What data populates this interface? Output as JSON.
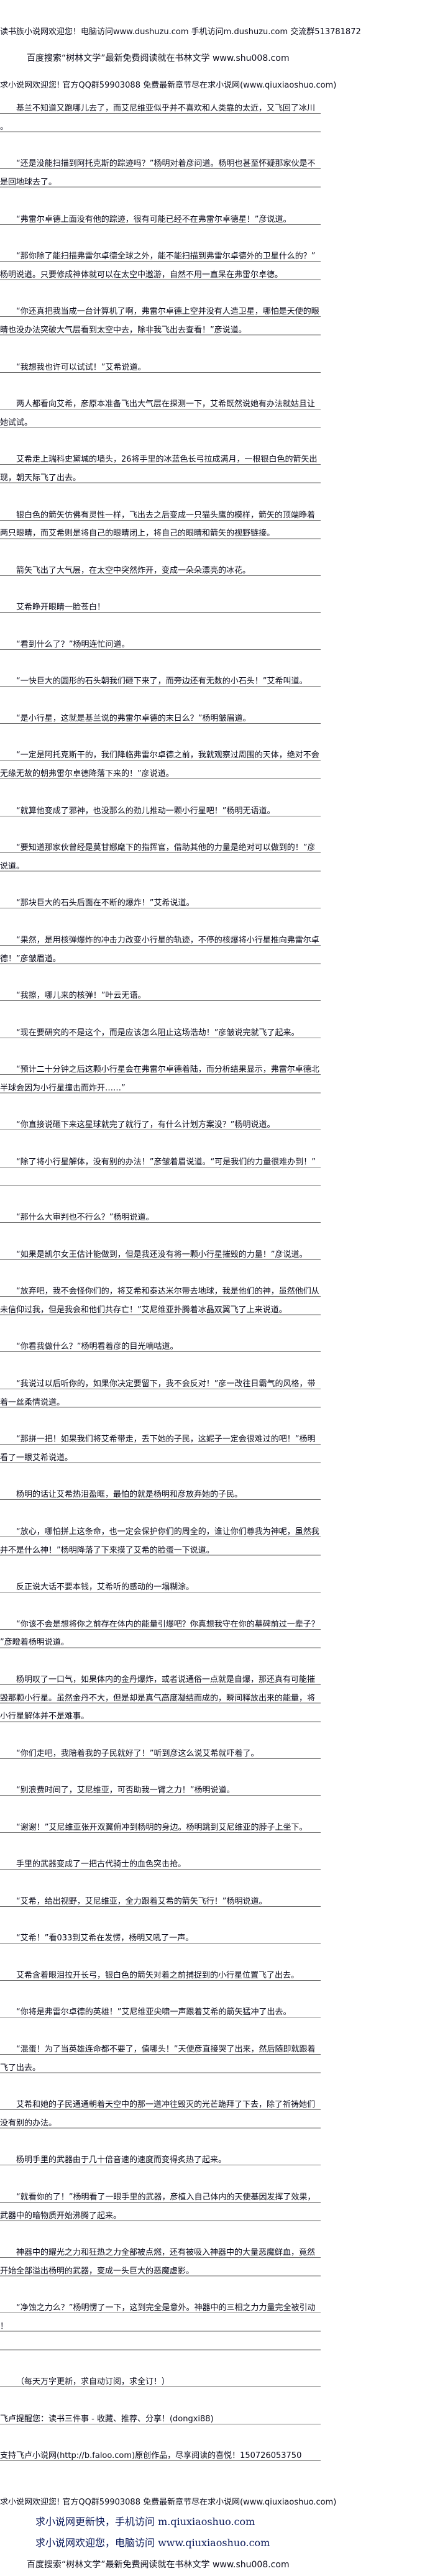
{
  "header": {
    "line1": "读书族小说网欢迎您！电脑访问www.dushuzu.com 手机访问m.dushuzu.com 交流群513781872",
    "line2": "百度搜索“树林文学”最新免费阅读就在书林文学 www.shu008.com",
    "line3": "求小说网欢迎您! 官方QQ群59903088 免费最新章节尽在求小说网(www.qiuxiaoshuo.com)"
  },
  "paragraphs": [
    {
      "text": "基兰不知道又跑哪儿去了，而艾尼维亚似乎并不喜欢和人类靠的太近，又飞回了冰川。"
    },
    {
      "text": "“还是没能扫描到阿托克斯的踪迹吗？”杨明对着彦问道。杨明也甚至怀疑那家伙是不是回地球去了。"
    },
    {
      "text": "“弗雷尔卓德上面没有他的踪迹，很有可能已经不在弗雷尔卓德星！”彦说道。"
    },
    {
      "text": "“那你除了能扫描弗雷尔卓德全球之外，能不能扫描到弗雷尔卓德外的卫星什么的？”杨明说道。只要修成神体就可以在太空中遨游，自然不用一直呆在弗雷尔卓德。"
    },
    {
      "text": "“你还真把我当成一台计算机了啊，弗雷尔卓德上空并没有人造卫星，哪怕是天使的眼睛也没办法突破大气层看到太空中去，除非我飞出去查看！”彦说道。"
    },
    {
      "text": "“我想我也许可以试试！”艾希说道。"
    },
    {
      "text": "两人都看向艾希，彦原本准备飞出大气层在探测一下，艾希既然说她有办法就姑且让她试试。"
    },
    {
      "text": "艾希走上瑞科史黛城的墙头，26将手里的冰蓝色长弓拉成满月，一根银白色的箭矢出现，朝天际飞了出去。"
    },
    {
      "text": "银白色的箭矢仿佛有灵性一样，飞出去之后变成一只猫头鹰的模样，箭矢的顶端睁着两只眼睛，而艾希则是将自己的眼睛闭上，将自己的眼睛和箭矢的视野链接。"
    },
    {
      "text": "箭矢飞出了大气层，在太空中突然炸开，变成一朵朵漂亮的冰花。"
    },
    {
      "text": "艾希睁开眼睛一脸苍白！"
    },
    {
      "text": "“看到什么了？”杨明连忙问道。"
    },
    {
      "text": "“一快巨大的圆形的石头朝我们砸下来了，而旁边还有无数的小石头！”艾希叫道。"
    },
    {
      "text": "“是小行星，这就是基兰说的弗雷尔卓德的末日么？”杨明皱眉道。"
    },
    {
      "text": "“一定是阿托克斯干的，我们降临弗雷尔卓德之前，我就观察过周围的天体，绝对不会无缘无故的朝弗雷尔卓德降落下来的！”彦说道。"
    },
    {
      "text": "“就算他变成了邪神，也没那么的劲儿推动一颗小行星吧！”杨明无语道。"
    },
    {
      "text": "“要知道那家伙曾经是莫甘娜麾下的指挥官，借助其他的力量是绝对可以做到的！”彦说道。"
    },
    {
      "text": "“那块巨大的石头后面在不断的爆炸！”艾希说道。"
    },
    {
      "text": "“果然，是用核弹爆炸的冲击力改变小行星的轨迹，不停的核爆将小行星推向弗雷尔卓德！”彦皱眉道。"
    },
    {
      "text": "“我擦，哪儿来的核弹！”叶云无语。"
    },
    {
      "text": "“现在要研究的不是这个，而是应该怎么阻止这场浩劫！”彦皱说完就飞了起来。"
    },
    {
      "text": "“预计二十分钟之后这颗小行星会在弗雷尔卓德着陆，而分析结果显示，弗雷尔卓德北半球会因为小行星撞击而炸开……”"
    },
    {
      "text": "“你直接说砸下来这星球就完了就行了，有什么计划方案没？”杨明说道。"
    },
    {
      "text": "“除了将小行星解体，没有别的办法！”彦皱着眉说道。“可是我们的力量很难办到！”",
      "blank_line_after": true
    },
    {
      "text": "“那什么大审判也不行么？”杨明说道。"
    },
    {
      "text": "“如果是凯尔女王估计能做到，但是我还没有将一颗小行星摧毁的力量！”彦说道。"
    },
    {
      "text": "“放弃吧，我不会怪你们的，将艾希和泰达米尔带去地球，我是他们的神，虽然他们从未信仰过我，但是我会和他们共存亡！”艾尼维亚扑腾着冰晶双翼飞了上来说道。"
    },
    {
      "text": "“你看我做什么？”杨明看着彦的目光嘀咕道。"
    },
    {
      "text": "“我说过以后听你的，如果你决定要留下，我不会反对！”彦一改往日霸气的风格，带着一丝柔情说道。"
    },
    {
      "text": "“那拼一把！如果我们将艾希带走，丢下她的子民，这妮子一定会很难过的吧！”杨明看了一眼艾希说道。"
    },
    {
      "text": "杨明的话让艾希热泪盈眶，最怕的就是杨明和彦放弃她的子民。"
    },
    {
      "text": "“放心，哪怕拼上这条命，也一定会保护你们的周全的，谁让你们尊我为神呢，虽然我并不是什么神！”杨明降落了下来摸了艾希的脸蛋一下说道。"
    },
    {
      "text": "反正说大话不要本钱，艾希听的感动的一塌糊涂。"
    },
    {
      "text": "“你该不会是想将你之前存在体内的能量引爆吧？你真想我守在你的墓碑前过一辈子？”彦瞪着杨明说道。"
    },
    {
      "text": "杨明叹了一口气，如果体内的金丹爆炸，或者说通俗一点就是自爆，那还真有可能摧毁那颗小行星。虽然金丹不大，但是却是真气高度凝结而成的，瞬间释放出来的能量，将小行星解体并不是难事。"
    },
    {
      "text": "“你们走吧，我陪着我的子民就好了！”听到彦这么说艾希就吓着了。"
    },
    {
      "text": "“别浪费时间了，艾尼维亚，可否助我一臂之力！”杨明说道。"
    },
    {
      "text": "“谢谢！”艾尼维亚张开双翼俯冲到杨明的身边。杨明跳到艾尼维亚的脖子上坐下。"
    },
    {
      "text": "手里的武器变成了一把古代骑士的血色突击抢。"
    },
    {
      "text": "“艾希，给出视野，艾尼维亚，全力跟着艾希的箭矢飞行！”杨明说道。"
    },
    {
      "text": "“艾希！”看033到艾希在发愣，杨明又吼了一声。"
    },
    {
      "text": "艾希含着眼泪拉开长弓，银白色的箭矢对着之前捕捉到的小行星位置飞了出去。"
    },
    {
      "text": "“你将是弗雷尔卓德的英雄！”艾尼维亚尖啸一声跟着艾希的箭矢猛冲了出去。"
    },
    {
      "text": "“混蛋！为了当英雄连命都不要了，值哪头！”天使彦直接哭了出来，然后随即就跟着飞了出去。"
    },
    {
      "text": "艾希和她的子民通通朝着天空中的那一道冲往毁灭的光芒跪拜了下去，除了祈祷她们没有别的办法。"
    },
    {
      "text": "杨明手里的武器由于几十倍音速的速度而变得炙热了起来。"
    },
    {
      "text": "“就看你的了！”杨明看了一眼手里的武器，彦植入自己体内的天使基因发挥了效果，武器中的暗物质开始沸腾了起来。"
    },
    {
      "text": "神器中的耀光之力和狂热之力全部被点燃，还有被吸入神器中的大量恶魔鲜血，竟然开始全部溢出杨明的武器，变成一头巨大的恶魔虚影。"
    },
    {
      "text": "“净蚀之力么？”杨明愣了一下，这到完全是意外。神器中的三相之力力量完全被引动！",
      "blank_line_after": true
    },
    {
      "text": "（每天万字更新，求自动订阅，求全订！）"
    },
    {
      "text": "飞卢提醒您：读书三件事 - 收藏、推荐、分享！(dongxi88)",
      "no_indent": true
    },
    {
      "text": "支持飞卢小说网(http://b.faloo.com)原创作品，尽享阅读的喜悦！150726053750",
      "no_indent": true
    }
  ],
  "footer": {
    "line1": "求小说网欢迎您! 官方QQ群59903088 免费最新章节尽在求小说网(www.qiuxiaoshuo.com)",
    "line2": "求小说网更新快，手机访问 m.qiuxiaoshuo.com",
    "line3": "求小说网欢迎您，电脑访问 www.qiuxiaoshuo.com",
    "line4": "百度搜索“树林文学”最新免费阅读就在书林文学 www.shu008.com"
  }
}
